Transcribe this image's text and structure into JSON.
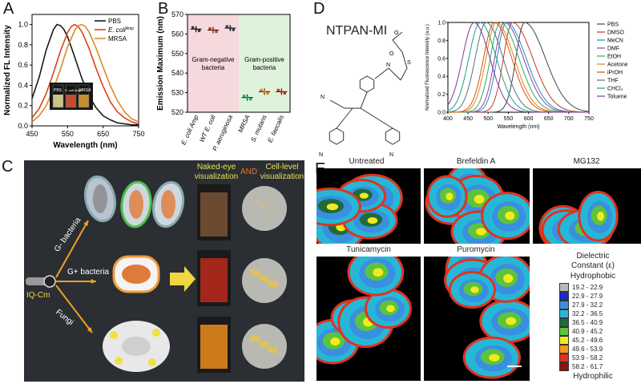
{
  "panels": {
    "A": "A",
    "B": "B",
    "C": "C",
    "D": "D",
    "E": "E"
  },
  "colors": {
    "pbs": "#1a1a1a",
    "ecoli": "#d9421b",
    "mrsa": "#d98b2a",
    "gram_neg_bg": "#f6d9dc",
    "gram_pos_bg": "#dff2dc",
    "panel_c_bg": "#2b2f33"
  },
  "chart_data": [
    {
      "id": "A",
      "type": "line",
      "xlabel": "Wavelength (nm)",
      "ylabel": "Normalized FL Intensity",
      "xlim": [
        450,
        750
      ],
      "ylim": [
        0,
        1.1
      ],
      "xticks": [
        450,
        550,
        650,
        750
      ],
      "yticks": [
        "0.0",
        "0.2",
        "0.4",
        "0.6",
        "0.8",
        "1.0"
      ],
      "legend_placement": "top-right",
      "series": [
        {
          "name": "PBS",
          "color": "#1a1a1a",
          "x": [
            450,
            470,
            490,
            510,
            520,
            530,
            540,
            550,
            560,
            570,
            590,
            610,
            630,
            650,
            670,
            690,
            710,
            730,
            750
          ],
          "y": [
            0.27,
            0.48,
            0.75,
            0.95,
            1.0,
            0.99,
            0.95,
            0.88,
            0.78,
            0.68,
            0.47,
            0.3,
            0.18,
            0.1,
            0.06,
            0.03,
            0.02,
            0.01,
            0.01
          ]
        },
        {
          "name": "E. coli",
          "name_sup": "Amp",
          "color": "#d9421b",
          "x": [
            450,
            470,
            490,
            510,
            530,
            550,
            560,
            570,
            580,
            590,
            610,
            630,
            650,
            670,
            690,
            710,
            730,
            750
          ],
          "y": [
            0.08,
            0.17,
            0.32,
            0.52,
            0.74,
            0.92,
            0.98,
            1.0,
            0.98,
            0.93,
            0.77,
            0.57,
            0.39,
            0.24,
            0.14,
            0.08,
            0.04,
            0.02
          ]
        },
        {
          "name": "MRSA",
          "color": "#d98b2a",
          "x": [
            450,
            470,
            490,
            510,
            530,
            550,
            570,
            580,
            590,
            600,
            610,
            630,
            650,
            670,
            690,
            710,
            730,
            750
          ],
          "y": [
            0.04,
            0.1,
            0.2,
            0.36,
            0.56,
            0.78,
            0.94,
            0.99,
            1.0,
            0.98,
            0.93,
            0.77,
            0.58,
            0.4,
            0.25,
            0.14,
            0.07,
            0.04
          ]
        }
      ],
      "inset_labels": [
        "PBS",
        "E. coli Amp",
        "MRSA"
      ]
    },
    {
      "id": "B",
      "type": "scatter",
      "ylabel": "Emission Maximum (nm)",
      "ylim": [
        520,
        570
      ],
      "yticks": [
        520,
        530,
        540,
        550,
        560,
        570
      ],
      "categories": [
        "E. coli Amp",
        "WT E. coli",
        "P. aeruginosa",
        "MRSA",
        "S. mutans",
        "E. faecalis"
      ],
      "values": [
        562.5,
        562,
        563,
        527.5,
        530.5,
        530.5
      ],
      "group_labels": [
        "Gram-negative bacteria",
        "Gram-positive bacteria"
      ]
    },
    {
      "id": "D",
      "type": "line",
      "xlabel": "Wavelength (nm)",
      "ylabel": "Normalized Fluorescence Intensity (a.u.)",
      "xlim": [
        400,
        750
      ],
      "ylim": [
        0,
        1.0
      ],
      "xticks": [
        400,
        450,
        500,
        550,
        600,
        650,
        700,
        750
      ],
      "yticks": [
        "0.0",
        "0.2",
        "0.4",
        "0.6",
        "0.8",
        "1.0"
      ],
      "legend_placement": "right",
      "series": [
        {
          "name": "PBS",
          "color": "#444444",
          "peak": 590
        },
        {
          "name": "DMSO",
          "color": "#c0392b",
          "peak": 560
        },
        {
          "name": "MeCN",
          "color": "#2e86c1",
          "peak": 545
        },
        {
          "name": "DMF",
          "color": "#8e44ad",
          "peak": 540
        },
        {
          "name": "EtOH",
          "color": "#27ae60",
          "peak": 530
        },
        {
          "name": "Acetone",
          "color": "#e67e22",
          "peak": 520
        },
        {
          "name": "iPrOH",
          "color": "#d35400",
          "peak": 515
        },
        {
          "name": "THF",
          "color": "#5d6d7e",
          "peak": 495
        },
        {
          "name": "CHCl₃",
          "color": "#17a589",
          "peak": 480
        },
        {
          "name": "Toluene",
          "color": "#7d3c98",
          "peak": 465
        }
      ]
    }
  ],
  "panel_b": {
    "group_neg": "Gram-negative bacteria",
    "group_neg_l1": "Gram-negative",
    "group_neg_l2": "bacteria",
    "group_pos_l1": "Gram-positive",
    "group_pos_l2": "bacteria"
  },
  "panel_c": {
    "naked_eye_l1": "Naked-eye",
    "naked_eye_l2": "visualization",
    "and": "AND",
    "cell_level_l1": "Cell-level",
    "cell_level_l2": "visualization",
    "g_neg": "G- bacteria",
    "g_pos": "G+ bacteria",
    "fungi": "Fungi",
    "probe": "IQ-Cm"
  },
  "panel_d": {
    "compound": "NTPAN-MI"
  },
  "panel_e": {
    "images": [
      "Untreated",
      "Brefeldin A",
      "MG132",
      "Tunicamycin",
      "Puromycin"
    ],
    "legend_title_l1": "Dielectric",
    "legend_title_l2": "Constant (ε)",
    "hydrophobic": "Hydrophobic",
    "hydrophilic": "Hydrophilic",
    "bins": [
      {
        "label": "19.2 - 22.9",
        "color": "#b7b7b7"
      },
      {
        "label": "22.9 - 27.9",
        "color": "#1b2bd1"
      },
      {
        "label": "27.9 - 32.2",
        "color": "#3a8fe0"
      },
      {
        "label": "32.2 - 36.5",
        "color": "#27b7d6"
      },
      {
        "label": "36.5 - 40.9",
        "color": "#1f6b3a"
      },
      {
        "label": "40.9 - 45.2",
        "color": "#5cc43c"
      },
      {
        "label": "45.2 - 49.6",
        "color": "#f2ea1f"
      },
      {
        "label": "49.6 - 53.9",
        "color": "#f29b1b"
      },
      {
        "label": "53.9 - 58.2",
        "color": "#e0331e"
      },
      {
        "label": "58.2 - 61.7",
        "color": "#8e1410"
      }
    ]
  }
}
